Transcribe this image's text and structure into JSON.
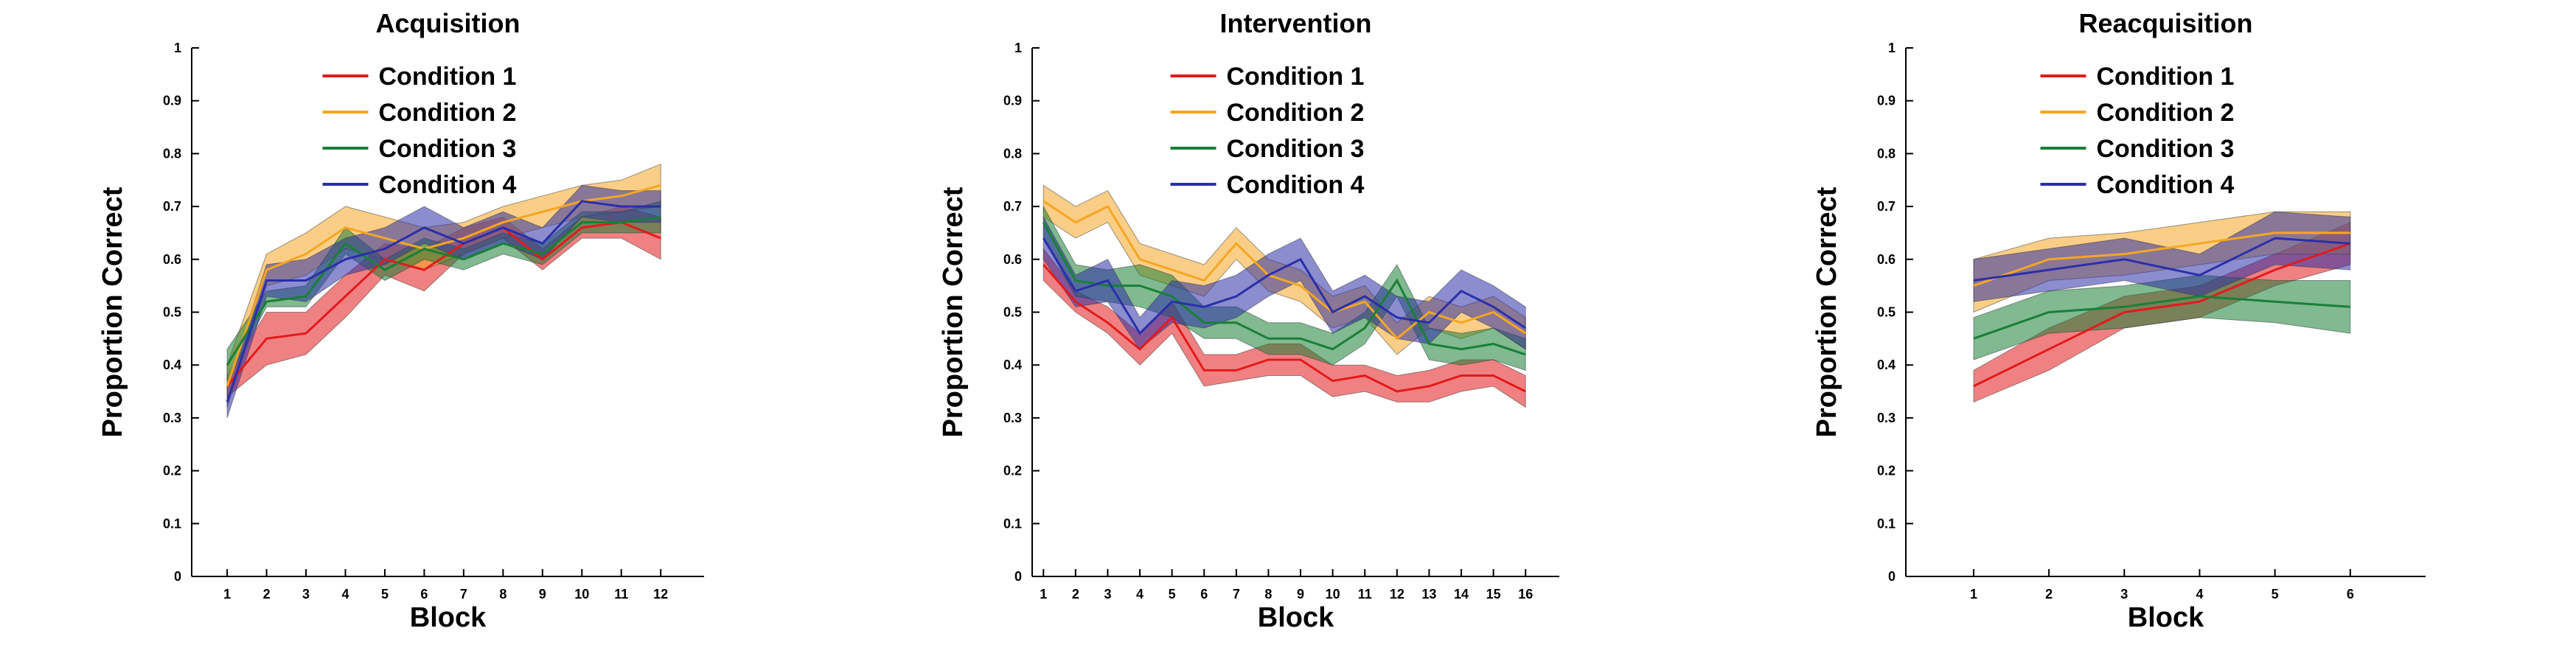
{
  "figure": {
    "colors": {
      "Condition 1": "#e31a1c",
      "Condition 2": "#f5a623",
      "Condition 3": "#1a7f37",
      "Condition 4": "#2b2fa8"
    }
  },
  "chart_data": [
    {
      "type": "line",
      "title": "Acquisition",
      "xlabel": "Block",
      "ylabel": "Proportion Correct",
      "ylim": [
        0,
        1
      ],
      "yticks": [
        "0",
        "0.1",
        "0.2",
        "0.3",
        "0.4",
        "0.5",
        "0.6",
        "0.7",
        "0.8",
        "0.9",
        "1"
      ],
      "x": [
        1,
        2,
        3,
        4,
        5,
        6,
        7,
        8,
        9,
        10,
        11,
        12
      ],
      "xlim": [
        0.1,
        13.1
      ],
      "legend": "top-center",
      "band": "shaded error band around each mean line",
      "series": [
        {
          "name": "Condition 1",
          "values": [
            0.36,
            0.45,
            0.46,
            0.53,
            0.6,
            0.58,
            0.63,
            0.66,
            0.6,
            0.66,
            0.67,
            0.64
          ],
          "lower": [
            0.34,
            0.4,
            0.42,
            0.49,
            0.57,
            0.54,
            0.61,
            0.64,
            0.58,
            0.64,
            0.64,
            0.6
          ],
          "upper": [
            0.38,
            0.5,
            0.5,
            0.57,
            0.63,
            0.62,
            0.66,
            0.68,
            0.62,
            0.68,
            0.7,
            0.68
          ]
        },
        {
          "name": "Condition 2",
          "values": [
            0.36,
            0.58,
            0.61,
            0.66,
            0.64,
            0.62,
            0.64,
            0.67,
            0.69,
            0.71,
            0.72,
            0.74
          ],
          "lower": [
            0.32,
            0.55,
            0.57,
            0.62,
            0.6,
            0.58,
            0.61,
            0.64,
            0.66,
            0.68,
            0.69,
            0.7
          ],
          "upper": [
            0.4,
            0.61,
            0.65,
            0.7,
            0.68,
            0.66,
            0.67,
            0.7,
            0.72,
            0.74,
            0.75,
            0.78
          ]
        },
        {
          "name": "Condition 3",
          "values": [
            0.4,
            0.52,
            0.53,
            0.63,
            0.58,
            0.62,
            0.6,
            0.63,
            0.61,
            0.67,
            0.67,
            0.68
          ],
          "lower": [
            0.37,
            0.51,
            0.51,
            0.61,
            0.56,
            0.6,
            0.58,
            0.61,
            0.59,
            0.65,
            0.65,
            0.65
          ],
          "upper": [
            0.43,
            0.54,
            0.55,
            0.66,
            0.6,
            0.64,
            0.62,
            0.65,
            0.63,
            0.69,
            0.69,
            0.71
          ]
        },
        {
          "name": "Condition 4",
          "values": [
            0.33,
            0.56,
            0.56,
            0.6,
            0.62,
            0.66,
            0.63,
            0.66,
            0.63,
            0.71,
            0.7,
            0.7
          ],
          "lower": [
            0.3,
            0.53,
            0.52,
            0.57,
            0.59,
            0.63,
            0.6,
            0.63,
            0.6,
            0.68,
            0.67,
            0.67
          ],
          "upper": [
            0.36,
            0.59,
            0.6,
            0.64,
            0.66,
            0.7,
            0.66,
            0.69,
            0.66,
            0.74,
            0.73,
            0.73
          ]
        }
      ]
    },
    {
      "type": "line",
      "title": "Intervention",
      "xlabel": "Block",
      "ylabel": "Proportion Correct",
      "ylim": [
        0,
        1
      ],
      "yticks": [
        "0",
        "0.1",
        "0.2",
        "0.3",
        "0.4",
        "0.5",
        "0.6",
        "0.7",
        "0.8",
        "0.9",
        "1"
      ],
      "x": [
        1,
        2,
        3,
        4,
        5,
        6,
        7,
        8,
        9,
        10,
        11,
        12,
        13,
        14,
        15,
        16
      ],
      "xlim": [
        0.65,
        17.05
      ],
      "legend": "top-center",
      "band": "shaded error band around each mean line",
      "series": [
        {
          "name": "Condition 1",
          "values": [
            0.59,
            0.52,
            0.48,
            0.43,
            0.49,
            0.39,
            0.39,
            0.41,
            0.41,
            0.37,
            0.38,
            0.35,
            0.36,
            0.38,
            0.38,
            0.35
          ],
          "lower": [
            0.56,
            0.5,
            0.46,
            0.4,
            0.46,
            0.36,
            0.37,
            0.38,
            0.38,
            0.34,
            0.35,
            0.33,
            0.33,
            0.35,
            0.36,
            0.32
          ],
          "upper": [
            0.62,
            0.54,
            0.51,
            0.46,
            0.52,
            0.42,
            0.42,
            0.44,
            0.44,
            0.4,
            0.4,
            0.38,
            0.39,
            0.41,
            0.41,
            0.38
          ]
        },
        {
          "name": "Condition 2",
          "values": [
            0.71,
            0.67,
            0.7,
            0.6,
            0.58,
            0.56,
            0.63,
            0.57,
            0.55,
            0.5,
            0.52,
            0.45,
            0.5,
            0.48,
            0.5,
            0.46
          ],
          "lower": [
            0.68,
            0.64,
            0.67,
            0.57,
            0.55,
            0.53,
            0.6,
            0.54,
            0.52,
            0.47,
            0.49,
            0.42,
            0.47,
            0.45,
            0.47,
            0.43
          ],
          "upper": [
            0.74,
            0.7,
            0.73,
            0.63,
            0.61,
            0.59,
            0.66,
            0.6,
            0.58,
            0.53,
            0.55,
            0.48,
            0.53,
            0.51,
            0.53,
            0.49
          ]
        },
        {
          "name": "Condition 3",
          "values": [
            0.67,
            0.56,
            0.55,
            0.55,
            0.53,
            0.48,
            0.48,
            0.45,
            0.45,
            0.43,
            0.47,
            0.56,
            0.44,
            0.43,
            0.44,
            0.42
          ],
          "lower": [
            0.64,
            0.53,
            0.52,
            0.51,
            0.49,
            0.45,
            0.45,
            0.42,
            0.42,
            0.4,
            0.44,
            0.53,
            0.41,
            0.4,
            0.41,
            0.39
          ],
          "upper": [
            0.7,
            0.59,
            0.58,
            0.59,
            0.57,
            0.51,
            0.51,
            0.48,
            0.48,
            0.46,
            0.5,
            0.59,
            0.47,
            0.46,
            0.47,
            0.45
          ]
        },
        {
          "name": "Condition 4",
          "values": [
            0.64,
            0.54,
            0.56,
            0.46,
            0.52,
            0.51,
            0.53,
            0.57,
            0.6,
            0.5,
            0.53,
            0.49,
            0.48,
            0.54,
            0.51,
            0.47
          ],
          "lower": [
            0.6,
            0.51,
            0.52,
            0.43,
            0.48,
            0.47,
            0.49,
            0.53,
            0.56,
            0.46,
            0.49,
            0.45,
            0.44,
            0.5,
            0.47,
            0.43
          ],
          "upper": [
            0.68,
            0.57,
            0.6,
            0.49,
            0.56,
            0.55,
            0.57,
            0.61,
            0.64,
            0.54,
            0.57,
            0.53,
            0.52,
            0.58,
            0.55,
            0.51
          ]
        }
      ]
    },
    {
      "type": "line",
      "title": "Reacquisition",
      "xlabel": "Block",
      "ylabel": "Proportion Correct",
      "ylim": [
        0,
        1
      ],
      "yticks": [
        "0",
        "0.1",
        "0.2",
        "0.3",
        "0.4",
        "0.5",
        "0.6",
        "0.7",
        "0.8",
        "0.9",
        "1"
      ],
      "x": [
        1,
        2,
        3,
        4,
        5,
        6
      ],
      "xlim": [
        0.1,
        7.0
      ],
      "legend": "top-center",
      "band": "shaded error band around each mean line",
      "series": [
        {
          "name": "Condition 1",
          "values": [
            0.36,
            0.43,
            0.5,
            0.52,
            0.58,
            0.63
          ],
          "lower": [
            0.33,
            0.39,
            0.47,
            0.49,
            0.55,
            0.59
          ],
          "upper": [
            0.39,
            0.47,
            0.53,
            0.55,
            0.61,
            0.67
          ]
        },
        {
          "name": "Condition 2",
          "values": [
            0.55,
            0.6,
            0.61,
            0.63,
            0.65,
            0.65
          ],
          "lower": [
            0.5,
            0.56,
            0.57,
            0.59,
            0.61,
            0.61
          ],
          "upper": [
            0.6,
            0.64,
            0.65,
            0.67,
            0.69,
            0.69
          ]
        },
        {
          "name": "Condition 3",
          "values": [
            0.45,
            0.5,
            0.51,
            0.53,
            0.52,
            0.51
          ],
          "lower": [
            0.41,
            0.46,
            0.47,
            0.49,
            0.48,
            0.46
          ],
          "upper": [
            0.49,
            0.54,
            0.55,
            0.57,
            0.56,
            0.56
          ]
        },
        {
          "name": "Condition 4",
          "values": [
            0.56,
            0.58,
            0.6,
            0.57,
            0.64,
            0.63
          ],
          "lower": [
            0.52,
            0.54,
            0.56,
            0.53,
            0.59,
            0.58
          ],
          "upper": [
            0.6,
            0.62,
            0.64,
            0.61,
            0.69,
            0.68
          ]
        }
      ]
    }
  ]
}
